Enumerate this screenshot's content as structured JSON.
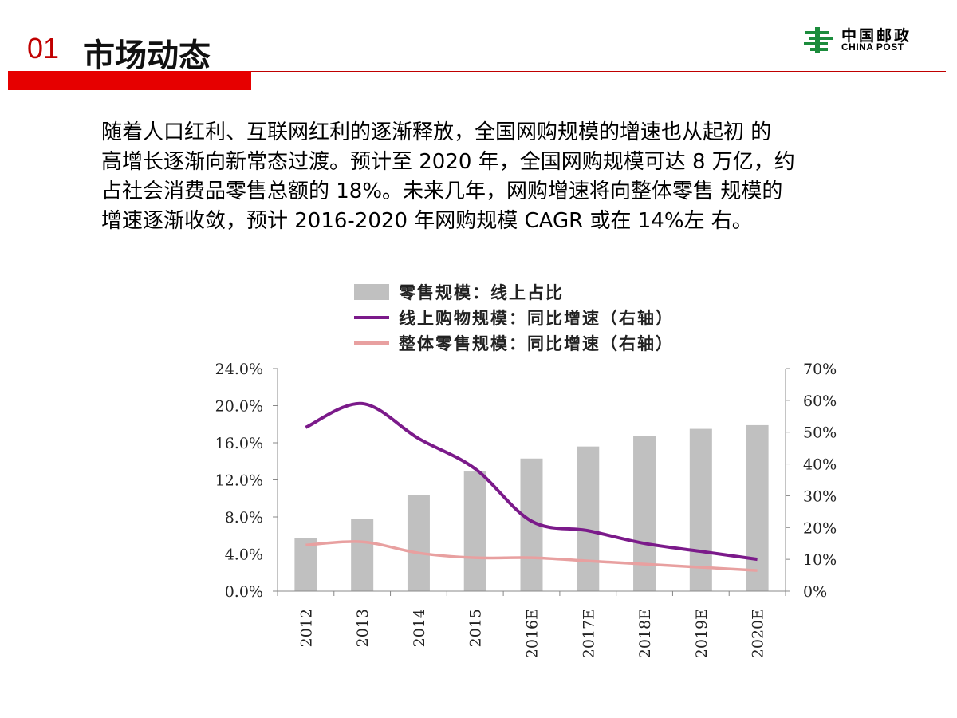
{
  "header": {
    "section_number": "01",
    "section_title": "市场动态",
    "logo_cn": "中国邮政",
    "logo_en": "CHINA POST"
  },
  "body": {
    "lines": [
      "随着人口红利、互联网红利的逐渐释放，全国网购规模的增速也从起初 的",
      "高增长逐渐向新常态过渡。预计至 2020 年，全国网购规模可达 8 万亿，约",
      "占社会消费品零售总额的 18%。未来几年，网购增速将向整体零售 规模的",
      "增速逐渐收敛，预计 2016-2020 年网购规模 CAGR 或在 14%左 右。"
    ]
  },
  "colors": {
    "accent_red": "#c00000",
    "bar_gray": "#c0c0c0",
    "online_line": "#7b1a8a",
    "total_line": "#e8a0a0",
    "logo_green": "#1c8c3c"
  },
  "chart_data": {
    "type": "bar",
    "categories": [
      "2012",
      "2013",
      "2014",
      "2015",
      "2016E",
      "2017E",
      "2018E",
      "2019E",
      "2020E"
    ],
    "series": [
      {
        "name": "零售规模：线上占比",
        "type": "bar",
        "axis": "left",
        "values": [
          5.7,
          7.8,
          10.4,
          12.9,
          14.3,
          15.6,
          16.7,
          17.5,
          17.9
        ]
      },
      {
        "name": "线上购物规模：同比增速（右轴）",
        "type": "line",
        "axis": "right",
        "values": [
          51.5,
          59,
          48,
          38.5,
          22,
          19,
          15,
          12.5,
          10
        ]
      },
      {
        "name": "整体零售规模：同比增速（右轴）",
        "type": "line",
        "axis": "right",
        "values": [
          14.5,
          15.5,
          12,
          10.5,
          10.5,
          9.5,
          8.5,
          7.5,
          6.5
        ]
      }
    ],
    "left_axis": {
      "min": 0,
      "max": 24,
      "ticks": [
        "0.0%",
        "4.0%",
        "8.0%",
        "12.0%",
        "16.0%",
        "20.0%",
        "24.0%"
      ]
    },
    "right_axis": {
      "min": 0,
      "max": 70,
      "ticks": [
        "0%",
        "10%",
        "20%",
        "30%",
        "40%",
        "50%",
        "60%",
        "70%"
      ]
    },
    "legend_position": "top",
    "grid": false
  }
}
